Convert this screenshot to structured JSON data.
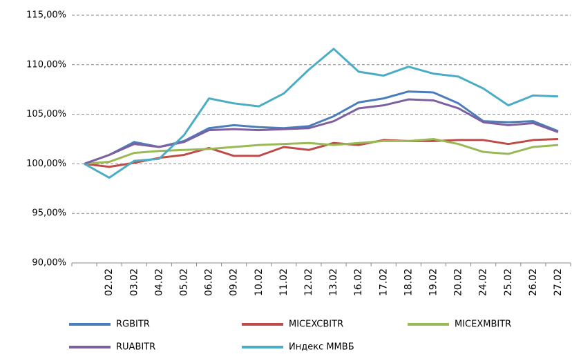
{
  "chart_data": {
    "type": "line",
    "categories": [
      null,
      "02.02",
      "03.02",
      "04.02",
      "05.02",
      "06.02",
      "09.02",
      "10.02",
      "11.02",
      "12.02",
      "13.02",
      "16.02",
      "17.02",
      "18.02",
      "19.02",
      "20.02",
      "24.02",
      "25.02",
      "26.02",
      "27.02"
    ],
    "series": [
      {
        "name": "RGBITR",
        "color": "#4a7ebb",
        "values": [
          100,
          100.9,
          102.2,
          101.7,
          102.3,
          103.6,
          103.9,
          103.7,
          103.6,
          103.8,
          104.8,
          106.2,
          106.6,
          107.3,
          107.2,
          106.1,
          104.3,
          104.2,
          104.3,
          103.3
        ]
      },
      {
        "name": "MICEXCBITR",
        "color": "#be4b48",
        "values": [
          100,
          99.7,
          100.1,
          100.6,
          100.9,
          101.6,
          100.8,
          100.8,
          101.7,
          101.4,
          102.1,
          101.9,
          102.4,
          102.3,
          102.3,
          102.4,
          102.4,
          102.0,
          102.4,
          102.5
        ]
      },
      {
        "name": "MICEXMBITR",
        "color": "#98b954",
        "values": [
          100,
          100.2,
          101.1,
          101.3,
          101.4,
          101.5,
          101.7,
          101.9,
          102.0,
          102.1,
          101.9,
          102.1,
          102.3,
          102.3,
          102.5,
          102.0,
          101.2,
          101.0,
          101.7,
          101.9
        ]
      },
      {
        "name": "RUABITR",
        "color": "#7d60a0",
        "values": [
          100,
          100.9,
          102.0,
          101.7,
          102.2,
          103.4,
          103.5,
          103.4,
          103.5,
          103.6,
          104.3,
          105.6,
          105.9,
          106.5,
          106.4,
          105.6,
          104.2,
          103.9,
          104.1,
          103.2
        ]
      },
      {
        "name": "Индекс ММВБ",
        "color": "#4bacc6",
        "values": [
          100,
          98.6,
          100.3,
          100.5,
          102.9,
          106.6,
          106.1,
          105.8,
          107.1,
          109.5,
          111.6,
          109.3,
          108.9,
          109.8,
          109.1,
          108.8,
          107.6,
          105.9,
          106.9,
          106.8
        ]
      }
    ],
    "ylim": [
      90,
      115
    ],
    "yticks": [
      {
        "value": 90,
        "label": "90,00%"
      },
      {
        "value": 95,
        "label": "95,00%"
      },
      {
        "value": 100,
        "label": "100,00%"
      },
      {
        "value": 105,
        "label": "105,00%"
      },
      {
        "value": 110,
        "label": "110,00%"
      },
      {
        "value": 115,
        "label": "115,00%"
      }
    ],
    "grid": true,
    "legend": "bottom"
  }
}
